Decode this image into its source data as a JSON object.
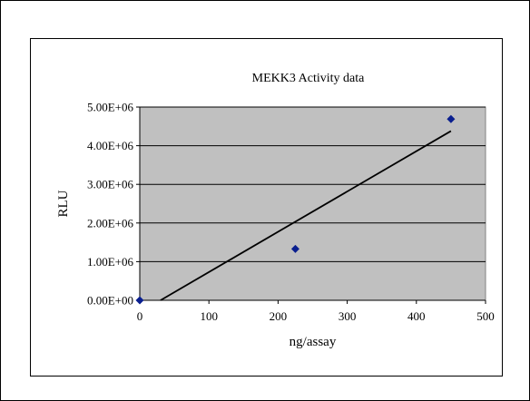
{
  "chart_data": {
    "type": "scatter",
    "title": "MEKK3 Activity data",
    "xlabel": "ng/assay",
    "ylabel": "RLU",
    "xlim": [
      0,
      500
    ],
    "ylim": [
      0,
      5000000
    ],
    "x_ticks": [
      0,
      100,
      200,
      300,
      400,
      500
    ],
    "x_tick_labels": [
      "0",
      "100",
      "200",
      "300",
      "400",
      "500"
    ],
    "y_ticks": [
      0,
      1000000,
      2000000,
      3000000,
      4000000,
      5000000
    ],
    "y_tick_labels": [
      "0.00E+00",
      "1.00E+06",
      "2.00E+06",
      "3.00E+06",
      "4.00E+06",
      "5.00E+06"
    ],
    "grid": true,
    "legend": "none",
    "series": [
      {
        "x": [
          0,
          225,
          450
        ],
        "y": [
          0,
          1330000,
          4690000
        ],
        "marker": "diamond",
        "color": "#0a1f8f"
      }
    ],
    "trendline": {
      "type": "linear",
      "x": [
        30,
        450
      ],
      "y": [
        0,
        4380000
      ],
      "color": "#000000"
    },
    "plot_background": "#c0c0c0"
  }
}
